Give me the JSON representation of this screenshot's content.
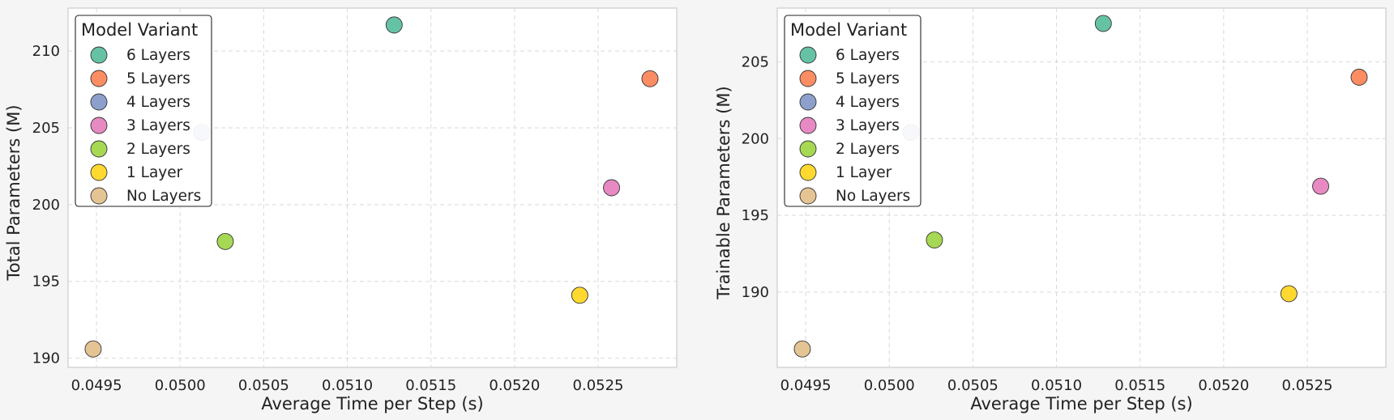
{
  "chart_data": [
    {
      "type": "scatter",
      "xlabel": "Average Time per Step (s)",
      "ylabel": "Total Parameters (M)",
      "xticks": [
        0.0495,
        0.05,
        0.0505,
        0.051,
        0.0515,
        0.052,
        0.0525
      ],
      "yticks": [
        190,
        195,
        200,
        205,
        210
      ],
      "xlim": [
        0.04933,
        0.05297
      ],
      "ylim": [
        189.4,
        212.8
      ],
      "grid": true,
      "legend": {
        "title": "Model Variant",
        "position": "top-left",
        "entries": [
          "6 Layers",
          "5 Layers",
          "4 Layers",
          "3 Layers",
          "2 Layers",
          "1 Layer",
          "No Layers"
        ]
      },
      "points": [
        {
          "label": "6 Layers",
          "x": 0.05128,
          "y": 211.7,
          "color": "#66c2a5"
        },
        {
          "label": "5 Layers",
          "x": 0.05281,
          "y": 208.2,
          "color": "#fc8d62"
        },
        {
          "label": "4 Layers",
          "x": 0.05013,
          "y": 204.7,
          "color": "#8da0cb"
        },
        {
          "label": "3 Layers",
          "x": 0.05258,
          "y": 201.1,
          "color": "#e78ac3"
        },
        {
          "label": "2 Layers",
          "x": 0.05027,
          "y": 197.6,
          "color": "#a6d854"
        },
        {
          "label": "1 Layer",
          "x": 0.05239,
          "y": 194.1,
          "color": "#ffd92f"
        },
        {
          "label": "No Layers",
          "x": 0.04948,
          "y": 190.6,
          "color": "#e5c494"
        }
      ]
    },
    {
      "type": "scatter",
      "xlabel": "Average Time per Step (s)",
      "ylabel": "Trainable Parameters (M)",
      "xticks": [
        0.0495,
        0.05,
        0.0505,
        0.051,
        0.0515,
        0.052,
        0.0525
      ],
      "yticks": [
        190,
        195,
        200,
        205
      ],
      "xlim": [
        0.04933,
        0.05297
      ],
      "ylim": [
        185.1,
        208.5
      ],
      "grid": true,
      "legend": {
        "title": "Model Variant",
        "position": "top-left",
        "entries": [
          "6 Layers",
          "5 Layers",
          "4 Layers",
          "3 Layers",
          "2 Layers",
          "1 Layer",
          "No Layers"
        ]
      },
      "points": [
        {
          "label": "6 Layers",
          "x": 0.05128,
          "y": 207.5,
          "color": "#66c2a5"
        },
        {
          "label": "5 Layers",
          "x": 0.05281,
          "y": 204.0,
          "color": "#fc8d62"
        },
        {
          "label": "4 Layers",
          "x": 0.05013,
          "y": 200.4,
          "color": "#8da0cb"
        },
        {
          "label": "3 Layers",
          "x": 0.05258,
          "y": 196.9,
          "color": "#e78ac3"
        },
        {
          "label": "2 Layers",
          "x": 0.05027,
          "y": 193.4,
          "color": "#a6d854"
        },
        {
          "label": "1 Layer",
          "x": 0.05239,
          "y": 189.9,
          "color": "#ffd92f"
        },
        {
          "label": "No Layers",
          "x": 0.04948,
          "y": 186.3,
          "color": "#e5c494"
        }
      ]
    }
  ]
}
